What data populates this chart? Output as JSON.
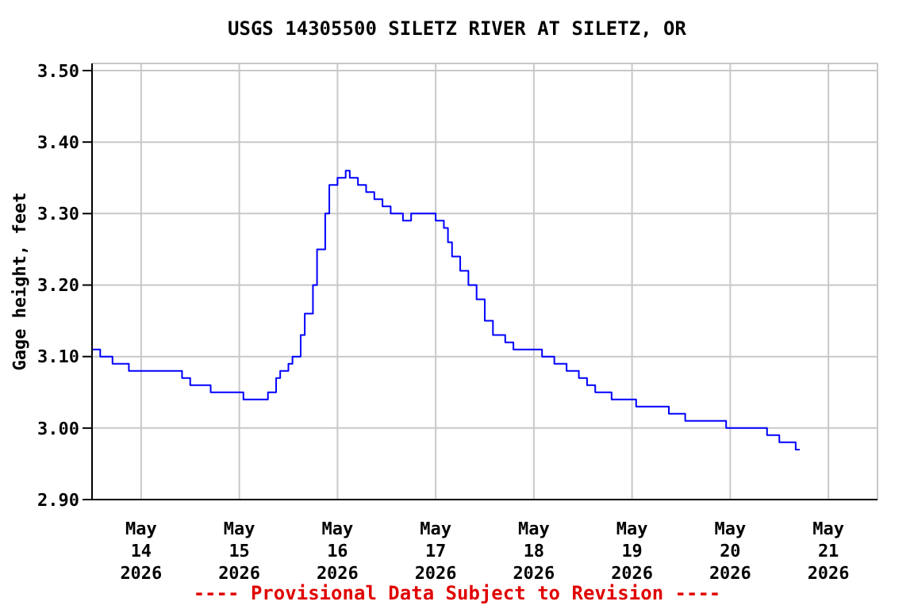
{
  "chart_data": {
    "type": "step",
    "title": "USGS 14305500 SILETZ RIVER AT SILETZ, OR",
    "ylabel": "Gage height, feet",
    "annotations": [
      "---- Provisional Data Subject to Revision ----"
    ],
    "x": [
      "2026-05-13T12:00",
      "2026-05-13T14:00",
      "2026-05-13T17:00",
      "2026-05-13T21:00",
      "2026-05-14T10:00",
      "2026-05-14T12:00",
      "2026-05-14T17:00",
      "2026-05-15T01:00",
      "2026-05-15T07:00",
      "2026-05-15T09:00",
      "2026-05-15T10:00",
      "2026-05-15T12:00",
      "2026-05-15T13:00",
      "2026-05-15T15:00",
      "2026-05-15T16:00",
      "2026-05-15T18:00",
      "2026-05-15T19:00",
      "2026-05-15T21:00",
      "2026-05-15T22:00",
      "2026-05-16T00:00",
      "2026-05-16T02:00",
      "2026-05-16T03:00",
      "2026-05-16T05:00",
      "2026-05-16T07:00",
      "2026-05-16T09:00",
      "2026-05-16T11:00",
      "2026-05-16T13:00",
      "2026-05-16T16:00",
      "2026-05-16T18:00",
      "2026-05-17T00:00",
      "2026-05-17T02:00",
      "2026-05-17T03:00",
      "2026-05-17T04:00",
      "2026-05-17T06:00",
      "2026-05-17T08:00",
      "2026-05-17T10:00",
      "2026-05-17T12:00",
      "2026-05-17T14:00",
      "2026-05-17T17:00",
      "2026-05-17T19:00",
      "2026-05-18T02:00",
      "2026-05-18T05:00",
      "2026-05-18T08:00",
      "2026-05-18T11:00",
      "2026-05-18T13:00",
      "2026-05-18T15:00",
      "2026-05-18T19:00",
      "2026-05-19T01:00",
      "2026-05-19T09:00",
      "2026-05-19T13:00",
      "2026-05-19T23:00",
      "2026-05-20T09:00",
      "2026-05-20T12:00",
      "2026-05-20T16:00",
      "2026-05-20T17:00"
    ],
    "series": [
      {
        "color": "#0000ff",
        "values": [
          3.11,
          3.1,
          3.09,
          3.08,
          3.07,
          3.06,
          3.05,
          3.04,
          3.05,
          3.07,
          3.08,
          3.09,
          3.1,
          3.13,
          3.16,
          3.2,
          3.25,
          3.3,
          3.34,
          3.35,
          3.36,
          3.35,
          3.34,
          3.33,
          3.32,
          3.31,
          3.3,
          3.29,
          3.3,
          3.29,
          3.28,
          3.26,
          3.24,
          3.22,
          3.2,
          3.18,
          3.15,
          3.13,
          3.12,
          3.11,
          3.1,
          3.09,
          3.08,
          3.07,
          3.06,
          3.05,
          3.04,
          3.03,
          3.02,
          3.01,
          3.0,
          2.99,
          2.98,
          2.97,
          2.97
        ]
      }
    ],
    "xlim": [
      "2026-05-13T12:00",
      "2026-05-21T12:00"
    ],
    "xticks": [
      {
        "value": "2026-05-14",
        "label": "May 14 2026"
      },
      {
        "value": "2026-05-15",
        "label": "May 15 2026"
      },
      {
        "value": "2026-05-16",
        "label": "May 16 2026"
      },
      {
        "value": "2026-05-17",
        "label": "May 17 2026"
      },
      {
        "value": "2026-05-18",
        "label": "May 18 2026"
      },
      {
        "value": "2026-05-19",
        "label": "May 19 2026"
      },
      {
        "value": "2026-05-20",
        "label": "May 20 2026"
      },
      {
        "value": "2026-05-21",
        "label": "May 21 2026"
      }
    ],
    "ylim": [
      2.9,
      3.51
    ],
    "yticks": [
      {
        "value": 2.9,
        "label": "2.90"
      },
      {
        "value": 3.0,
        "label": "3.00"
      },
      {
        "value": 3.1,
        "label": "3.10"
      },
      {
        "value": 3.2,
        "label": "3.20"
      },
      {
        "value": 3.3,
        "label": "3.30"
      },
      {
        "value": 3.4,
        "label": "3.40"
      },
      {
        "value": 3.5,
        "label": "3.50"
      }
    ],
    "grid": true,
    "legend": false,
    "marker": "none",
    "line_style": "solid"
  }
}
